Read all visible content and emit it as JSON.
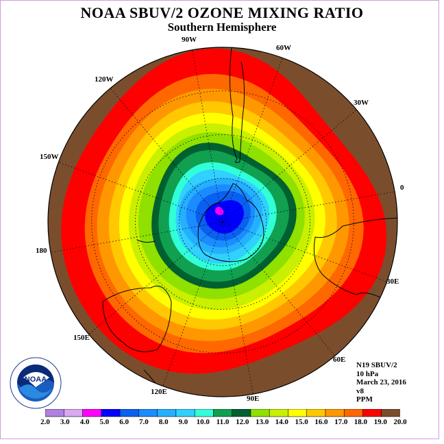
{
  "title": "NOAA SBUV/2 OZONE MIXING RATIO",
  "subtitle": "Southern Hemisphere",
  "longitude_labels": [
    "90W",
    "60W",
    "30W",
    "0",
    "30E",
    "60E",
    "90E",
    "120E",
    "150E",
    "180",
    "150W",
    "120W"
  ],
  "info": {
    "satellite": "N19 SBUV/2",
    "pressure": "10 hPa",
    "date": "March 23, 2016",
    "version": "v8",
    "units": "PPM"
  },
  "logo_text": "NOAA",
  "colorbar": {
    "ticks": [
      "2.0",
      "3.0",
      "4.0",
      "5.0",
      "6.0",
      "7.0",
      "8.0",
      "9.0",
      "10.0",
      "11.0",
      "12.0",
      "13.0",
      "14.0",
      "15.0",
      "16.0",
      "17.0",
      "18.0",
      "19.0",
      "20.0"
    ],
    "colors": [
      "#b080e0",
      "#d8a8f0",
      "#ff00ff",
      "#0000ff",
      "#0a60f0",
      "#1a8cff",
      "#24b0ff",
      "#30d0ff",
      "#30ffd8",
      "#10a050",
      "#006030",
      "#90e000",
      "#c8f000",
      "#ffff00",
      "#ffc800",
      "#ff9800",
      "#ff6800",
      "#ff0000",
      "#7a4e2d"
    ]
  },
  "map_colors": {
    "ocean_outer": "#7a4e2d",
    "coast": "#000000"
  }
}
